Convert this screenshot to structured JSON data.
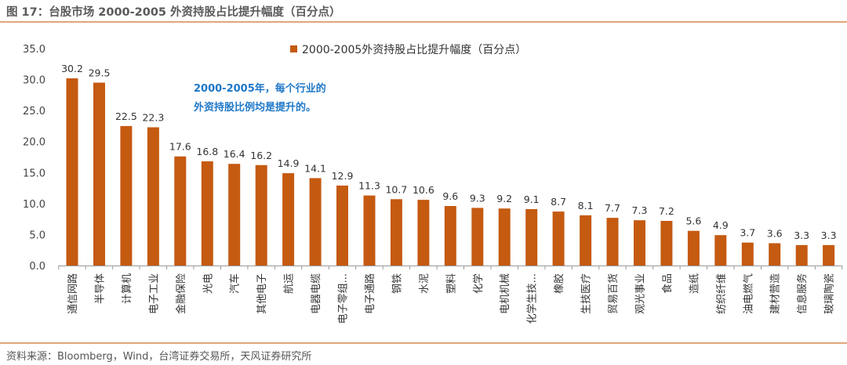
{
  "figure": {
    "title": "图 17：台股市场 2000-2005 外资持股占比提升幅度（百分点）",
    "source": "资料来源：Bloomberg，Wind，台湾证券交易所，天风证券研究所"
  },
  "colors": {
    "bar": "#c55a11",
    "rule": "#e0a77a",
    "annotation": "#1f78c8"
  },
  "chart_data": {
    "type": "bar",
    "ylim": [
      0,
      35
    ],
    "yticks": [
      "0.0",
      "5.0",
      "10.0",
      "15.0",
      "20.0",
      "25.0",
      "30.0",
      "35.0"
    ],
    "grid": false,
    "legend_position": "top",
    "series": [
      {
        "name": "2000-2005外资持股占比提升幅度（百分点）",
        "values": [
          30.2,
          29.5,
          22.5,
          22.3,
          17.6,
          16.8,
          16.4,
          16.2,
          14.9,
          14.1,
          12.9,
          11.3,
          10.7,
          10.6,
          9.6,
          9.3,
          9.2,
          9.1,
          8.7,
          8.1,
          7.7,
          7.3,
          7.2,
          5.6,
          4.9,
          3.7,
          3.6,
          3.3,
          3.3
        ],
        "labels": [
          "30.2",
          "29.5",
          "22.5",
          "22.3",
          "17.6",
          "16.8",
          "16.4",
          "16.2",
          "14.9",
          "14.1",
          "12.9",
          "11.3",
          "10.7",
          "10.6",
          "9.6",
          "9.3",
          "9.2",
          "9.1",
          "8.7",
          "8.1",
          "7.7",
          "7.3",
          "7.2",
          "5.6",
          "4.9",
          "3.7",
          "3.6",
          "3.3",
          "3.3"
        ]
      }
    ],
    "categories": [
      "通信网路",
      "半导体",
      "计算机",
      "电子工业",
      "金融保险",
      "光电",
      "汽车",
      "其他电子",
      "航运",
      "电器电缆",
      "电子零组...",
      "电子通路",
      "钢铁",
      "水泥",
      "塑料",
      "化学",
      "电机机械",
      "化学生技...",
      "橡胶",
      "生技医疗",
      "贸易百货",
      "观光事业",
      "食品",
      "造纸",
      "纺织纤维",
      "油电燃气",
      "建材营造",
      "信息服务",
      "玻璃陶瓷"
    ],
    "annotation": [
      "2000-2005年，每个行业的",
      "外资持股比例均是提升的。"
    ]
  }
}
